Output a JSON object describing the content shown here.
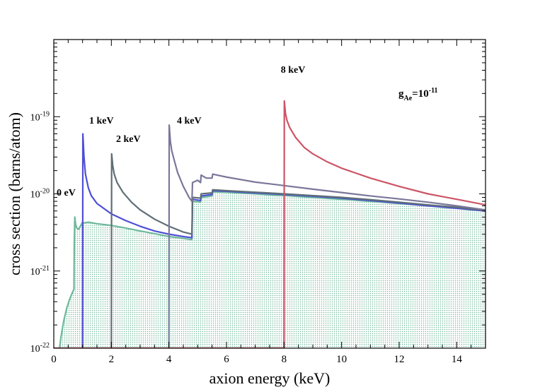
{
  "chart_data": {
    "type": "line",
    "xlabel": "axion energy (keV)",
    "ylabel": "cross section (barns/atom)",
    "xlim": [
      0,
      15
    ],
    "ylim": [
      1e-22,
      1e-18
    ],
    "y_scale": "log",
    "x_ticks": [
      "0",
      "2",
      "4",
      "6",
      "8",
      "10",
      "12",
      "14"
    ],
    "y_ticks": [
      {
        "base": "10",
        "exp": "-22",
        "value": 1e-22
      },
      {
        "base": "10",
        "exp": "-21",
        "value": 1e-21
      },
      {
        "base": "10",
        "exp": "-20",
        "value": 1e-20
      },
      {
        "base": "10",
        "exp": "-19",
        "value": 1e-19
      }
    ],
    "annotation": {
      "main": "g",
      "sub": "Ae",
      "eq": "=10",
      "sup": "-11"
    },
    "series": [
      {
        "name": "0 eV",
        "label": "0 eV",
        "color": "#6db89a",
        "filled": true,
        "points": [
          [
            0.2,
            1e-22
          ],
          [
            0.25,
            1.4e-22
          ],
          [
            0.35,
            2.3e-22
          ],
          [
            0.45,
            3.3e-22
          ],
          [
            0.55,
            4.3e-22
          ],
          [
            0.65,
            5.3e-22
          ],
          [
            0.7,
            5.8e-22
          ],
          [
            0.71,
            2e-21
          ],
          [
            0.73,
            5e-21
          ],
          [
            0.76,
            4e-21
          ],
          [
            0.8,
            3.6e-21
          ],
          [
            0.85,
            3.5e-21
          ],
          [
            0.87,
            3.5e-21
          ],
          [
            1.0,
            4.3e-21
          ],
          [
            1.05,
            4.2e-21
          ],
          [
            1.2,
            4.3e-21
          ],
          [
            1.5,
            4.1e-21
          ],
          [
            2.0,
            3.9e-21
          ],
          [
            2.5,
            3.6e-21
          ],
          [
            3.0,
            3.3e-21
          ],
          [
            3.5,
            3.05e-21
          ],
          [
            4.0,
            2.8e-21
          ],
          [
            4.5,
            2.65e-21
          ],
          [
            4.8,
            2.55e-21
          ],
          [
            4.82,
            8e-21
          ],
          [
            5.0,
            7.9e-21
          ],
          [
            5.1,
            7.8e-21
          ],
          [
            5.12,
            9e-21
          ],
          [
            5.5,
            9.4e-21
          ],
          [
            5.52,
            1.06e-20
          ],
          [
            6,
            1.05e-20
          ],
          [
            7,
            1e-20
          ],
          [
            8,
            9.5e-21
          ],
          [
            9,
            9e-21
          ],
          [
            10,
            8.5e-21
          ],
          [
            11,
            8e-21
          ],
          [
            12,
            7.5e-21
          ],
          [
            13,
            7e-21
          ],
          [
            14,
            6.5e-21
          ],
          [
            15,
            6e-21
          ]
        ]
      },
      {
        "name": "1 keV",
        "label": "1 keV",
        "color": "#4f4fd6",
        "points": [
          [
            1.0,
            1e-22
          ],
          [
            1.01,
            6e-20
          ],
          [
            1.05,
            3e-20
          ],
          [
            1.1,
            1.8e-20
          ],
          [
            1.2,
            1.2e-20
          ],
          [
            1.3,
            9.5e-21
          ],
          [
            1.5,
            7.5e-21
          ],
          [
            2.0,
            5.5e-21
          ],
          [
            2.5,
            4.5e-21
          ],
          [
            3.0,
            3.8e-21
          ],
          [
            3.5,
            3.3e-21
          ],
          [
            4.0,
            3e-21
          ],
          [
            4.5,
            2.8e-21
          ],
          [
            4.8,
            2.7e-21
          ],
          [
            4.82,
            8.5e-21
          ],
          [
            5.1,
            8.2e-21
          ],
          [
            5.12,
            9.4e-21
          ],
          [
            5.5,
            9.8e-21
          ],
          [
            5.52,
            1.1e-20
          ],
          [
            6,
            1.08e-20
          ],
          [
            7,
            1.03e-20
          ],
          [
            8,
            9.8e-21
          ],
          [
            9,
            9.3e-21
          ],
          [
            10,
            8.8e-21
          ],
          [
            11,
            8.2e-21
          ],
          [
            12,
            7.6e-21
          ],
          [
            13,
            7e-21
          ],
          [
            14,
            6.5e-21
          ],
          [
            15,
            6e-21
          ]
        ]
      },
      {
        "name": "2 keV",
        "label": "2 keV",
        "color": "#5f6f75",
        "points": [
          [
            2.0,
            1e-22
          ],
          [
            2.01,
            3.3e-20
          ],
          [
            2.05,
            2.3e-20
          ],
          [
            2.1,
            1.8e-20
          ],
          [
            2.2,
            1.4e-20
          ],
          [
            2.4,
            1.05e-20
          ],
          [
            2.7,
            7.8e-21
          ],
          [
            3.0,
            6.2e-21
          ],
          [
            3.5,
            4.7e-21
          ],
          [
            4.0,
            3.8e-21
          ],
          [
            4.5,
            3.2e-21
          ],
          [
            4.8,
            3e-21
          ],
          [
            4.82,
            9e-21
          ],
          [
            5.1,
            8.8e-21
          ],
          [
            5.12,
            1e-20
          ],
          [
            5.5,
            1.03e-20
          ],
          [
            5.52,
            1.13e-20
          ],
          [
            6,
            1.1e-20
          ],
          [
            7,
            1.05e-20
          ],
          [
            8,
            1e-20
          ],
          [
            9,
            9.5e-21
          ],
          [
            10,
            9e-21
          ],
          [
            11,
            8.4e-21
          ],
          [
            12,
            7.8e-21
          ],
          [
            13,
            7.2e-21
          ],
          [
            14,
            6.7e-21
          ],
          [
            15,
            6.1e-21
          ]
        ]
      },
      {
        "name": "4 keV",
        "label": "4 keV",
        "color": "#7a779a",
        "points": [
          [
            4.0,
            1e-22
          ],
          [
            4.01,
            7.8e-20
          ],
          [
            4.05,
            4.8e-20
          ],
          [
            4.1,
            3.6e-20
          ],
          [
            4.2,
            2.6e-20
          ],
          [
            4.3,
            1.9e-20
          ],
          [
            4.5,
            1.25e-20
          ],
          [
            4.7,
            9e-21
          ],
          [
            4.8,
            8e-21
          ],
          [
            4.82,
            1.4e-20
          ],
          [
            5.0,
            1.5e-20
          ],
          [
            5.1,
            1.4e-20
          ],
          [
            5.12,
            1.75e-20
          ],
          [
            5.3,
            1.6e-20
          ],
          [
            5.5,
            1.6e-20
          ],
          [
            5.52,
            1.8e-20
          ],
          [
            6,
            1.65e-20
          ],
          [
            7,
            1.42e-20
          ],
          [
            8,
            1.28e-20
          ],
          [
            9,
            1.15e-20
          ],
          [
            10,
            1.04e-20
          ],
          [
            11,
            9.4e-21
          ],
          [
            12,
            8.6e-21
          ],
          [
            13,
            7.8e-21
          ],
          [
            14,
            7e-21
          ],
          [
            15,
            6.2e-21
          ]
        ]
      },
      {
        "name": "8 keV",
        "label": "8 keV",
        "color": "#cc5566",
        "points": [
          [
            0,
            1e-22
          ],
          [
            8.0,
            1e-22
          ],
          [
            8.01,
            1.6e-19
          ],
          [
            8.05,
            1.1e-19
          ],
          [
            8.1,
            9e-20
          ],
          [
            8.2,
            7.2e-20
          ],
          [
            8.4,
            5.4e-20
          ],
          [
            8.7,
            4e-20
          ],
          [
            9.0,
            3.3e-20
          ],
          [
            9.5,
            2.6e-20
          ],
          [
            10,
            2.15e-20
          ],
          [
            11,
            1.6e-20
          ],
          [
            12,
            1.25e-20
          ],
          [
            13,
            1e-20
          ],
          [
            14,
            8.5e-21
          ],
          [
            15,
            7.2e-21
          ]
        ]
      }
    ]
  }
}
